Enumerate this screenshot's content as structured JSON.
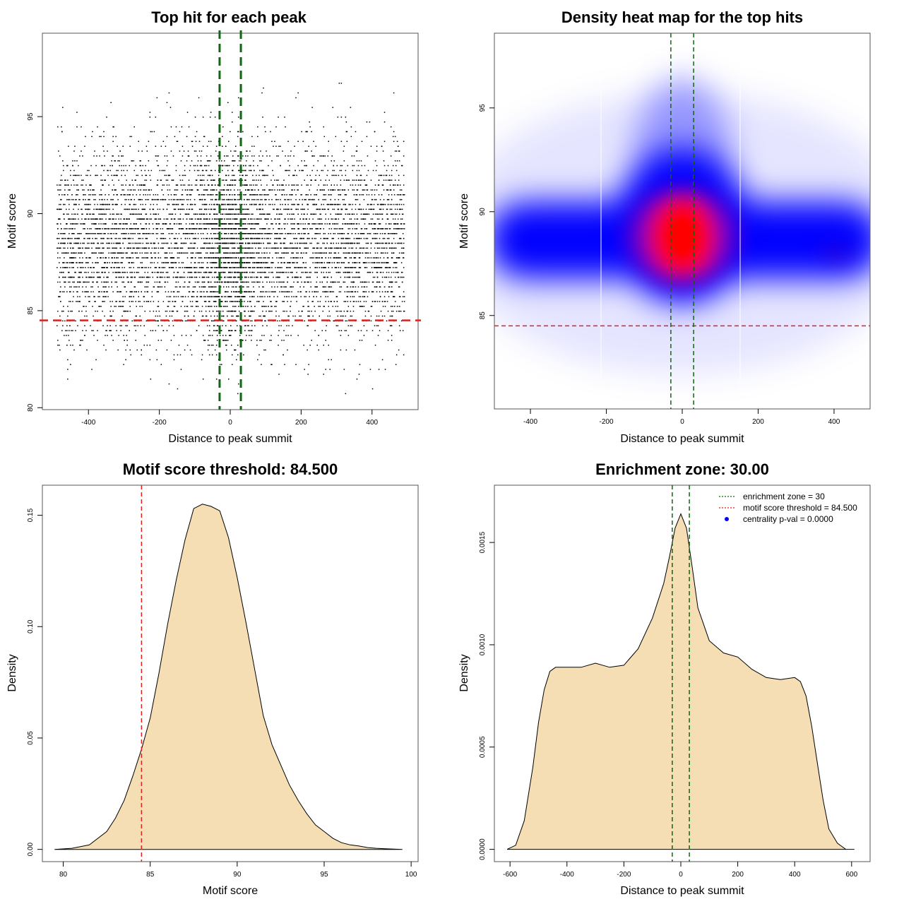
{
  "colors": {
    "threshold_line": "#dd2222",
    "zone_line": "#116611",
    "density_fill": "#f5deb3",
    "heat_low": "#0000ff",
    "heat_high": "#ff0000",
    "legend_dot": "#0000ff"
  },
  "chart_data": [
    {
      "type": "scatter",
      "title": "Top hit for each peak",
      "xlabel": "Distance to peak summit",
      "ylabel": "Motif score",
      "xlim": [
        -530,
        530
      ],
      "ylim": [
        79.9,
        99.3
      ],
      "xticks": [
        -400,
        -200,
        0,
        200,
        400
      ],
      "yticks": [
        80,
        85,
        90,
        95
      ],
      "threshold_y": 84.5,
      "zone_x": [
        -30,
        30
      ],
      "points_note": "~8000 points, x uniform in [-490, 490], y approx normal mean 88.5 sd 2.5, denser near x=0"
    },
    {
      "type": "heatmap",
      "title": "Density heat map for the top hits",
      "xlabel": "Distance to peak summit",
      "ylabel": "Motif score",
      "xlim": [
        -495,
        495
      ],
      "ylim": [
        80.5,
        98.6
      ],
      "xticks": [
        -400,
        -200,
        0,
        200,
        400
      ],
      "yticks": [
        85,
        90,
        95
      ],
      "threshold_y": 84.5,
      "zone_x": [
        -30,
        30
      ]
    },
    {
      "type": "area",
      "title": "Motif score threshold: 84.500",
      "xlabel": "Motif score",
      "ylabel": "Density",
      "xlim": [
        78.8,
        100.4
      ],
      "ylim": [
        -0.0055,
        0.1635
      ],
      "xticks": [
        80,
        85,
        90,
        95,
        100
      ],
      "yticks": [
        0.0,
        0.05,
        0.1,
        0.15
      ],
      "ytick_labels": [
        "0.00",
        "0.05",
        "0.10",
        "0.15"
      ],
      "threshold_x": 84.5,
      "x": [
        79.5,
        80.5,
        81.5,
        82.5,
        83,
        83.5,
        84,
        84.5,
        85,
        85.5,
        86,
        86.5,
        87,
        87.5,
        88,
        88.5,
        89,
        89.5,
        90,
        90.5,
        91,
        91.5,
        92,
        92.5,
        93,
        93.5,
        94,
        94.5,
        95,
        95.5,
        96,
        96.5,
        97,
        97.5,
        98,
        98.5,
        99,
        99.5
      ],
      "y": [
        0.0,
        0.0005,
        0.002,
        0.008,
        0.014,
        0.022,
        0.033,
        0.045,
        0.059,
        0.079,
        0.101,
        0.121,
        0.139,
        0.153,
        0.155,
        0.154,
        0.152,
        0.14,
        0.122,
        0.102,
        0.081,
        0.06,
        0.047,
        0.038,
        0.029,
        0.022,
        0.016,
        0.011,
        0.008,
        0.005,
        0.003,
        0.002,
        0.0015,
        0.0008,
        0.0005,
        0.0003,
        0.0001,
        0.0
      ]
    },
    {
      "type": "area",
      "title": "Enrichment zone: 30.00",
      "xlabel": "Distance to peak summit",
      "ylabel": "Density",
      "xlim": [
        -655,
        665
      ],
      "ylim": [
        -6e-05,
        0.00178
      ],
      "xticks": [
        -600,
        -400,
        -200,
        0,
        200,
        400,
        600
      ],
      "yticks": [
        0,
        0.0005,
        0.001,
        0.0015
      ],
      "ytick_labels": [
        "0.0000",
        "0.0005",
        "0.0010",
        "0.0015"
      ],
      "zone_x": [
        -30,
        30
      ],
      "x": [
        -610,
        -580,
        -550,
        -520,
        -500,
        -480,
        -460,
        -440,
        -420,
        -400,
        -350,
        -300,
        -250,
        -200,
        -150,
        -100,
        -60,
        -40,
        -20,
        0,
        20,
        40,
        60,
        100,
        150,
        200,
        250,
        300,
        350,
        400,
        420,
        440,
        460,
        480,
        500,
        520,
        550,
        580,
        610
      ],
      "y": [
        0.0,
        2e-05,
        0.00014,
        0.0004,
        0.00062,
        0.00078,
        0.00087,
        0.00089,
        0.00089,
        0.00089,
        0.00089,
        0.00091,
        0.00089,
        0.0009,
        0.00098,
        0.00113,
        0.0013,
        0.00143,
        0.00157,
        0.00164,
        0.00157,
        0.00138,
        0.00118,
        0.00102,
        0.00096,
        0.00094,
        0.00088,
        0.00084,
        0.00083,
        0.00084,
        0.00082,
        0.00075,
        0.0006,
        0.00042,
        0.00024,
        0.0001,
        3e-05,
        0.0,
        0.0
      ],
      "legend": [
        {
          "label": "enrichment zone = 30",
          "style": "dotted-green"
        },
        {
          "label": "motif score threshold = 84.500",
          "style": "dotted-red"
        },
        {
          "label": "centrality p-val = 0.0000",
          "style": "blue-dot"
        }
      ]
    }
  ]
}
